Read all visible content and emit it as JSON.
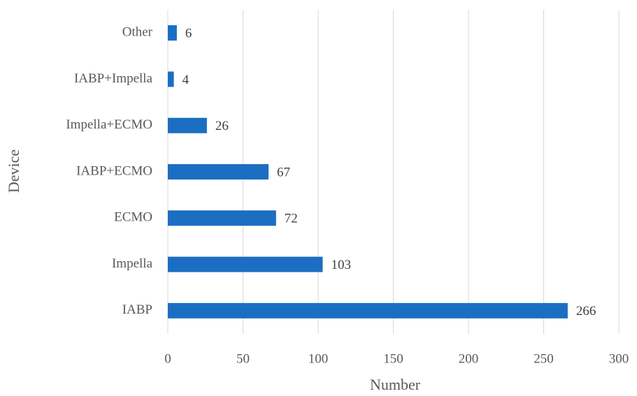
{
  "chart_data": {
    "type": "bar",
    "orientation": "horizontal",
    "categories": [
      "Other",
      "IABP+Impella",
      "Impella+ECMO",
      "IABP+ECMO",
      "ECMO",
      "Impella",
      "IABP"
    ],
    "values": [
      6,
      4,
      26,
      67,
      72,
      103,
      266
    ],
    "color": "#1b6ec2",
    "x_label": "Number",
    "y_label": "Device",
    "xlim": [
      0,
      300
    ],
    "xticks": [
      0,
      50,
      100,
      150,
      200,
      250,
      300
    ],
    "grid": true
  }
}
